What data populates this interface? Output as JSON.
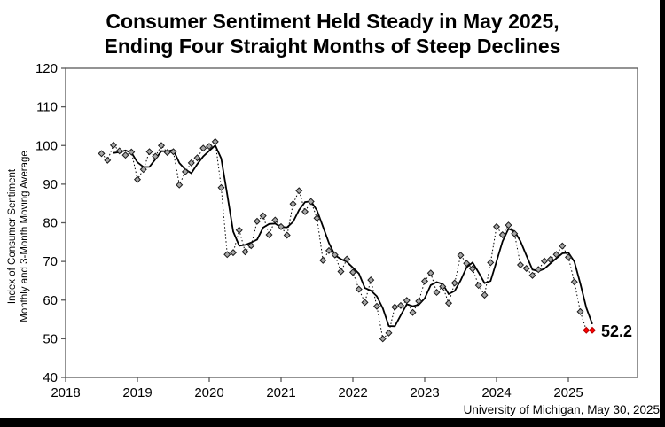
{
  "page": {
    "title_line1": "Consumer Sentiment Held Steady in May 2025,",
    "title_line2": "Ending Four Straight Months of Steep Declines",
    "source_note": "University of Michigan, May 30, 2025"
  },
  "chart_data": {
    "type": "line",
    "title": "Consumer Sentiment Held Steady in May 2025, Ending Four Straight Months of Steep Declines",
    "ylabel_line1": "Index of Consumer Sentiment",
    "ylabel_line2": "Monthly and 3-Month Moving Average",
    "ylim": [
      40,
      120
    ],
    "yticks": [
      40,
      50,
      60,
      70,
      80,
      90,
      100,
      110,
      120
    ],
    "xticks": [
      "2018",
      "2019",
      "2020",
      "2021",
      "2022",
      "2023",
      "2024",
      "2025"
    ],
    "grid": false,
    "legend": "none",
    "x_start": {
      "year": 2018,
      "month": 7
    },
    "x_end": {
      "year": 2025,
      "month": 5
    },
    "series": [
      {
        "name": "Monthly Index",
        "style": "dotted line with diamond markers",
        "values": [
          97.9,
          96.2,
          100.1,
          98.6,
          97.5,
          98.3,
          91.2,
          93.8,
          98.4,
          97.2,
          100.0,
          98.2,
          98.4,
          89.8,
          93.2,
          95.5,
          96.8,
          99.3,
          99.8,
          101.0,
          89.1,
          71.8,
          72.3,
          78.1,
          72.5,
          74.1,
          80.4,
          81.8,
          76.9,
          80.7,
          79.0,
          76.8,
          84.9,
          88.3,
          82.9,
          85.5,
          81.2,
          70.3,
          72.8,
          71.7,
          67.4,
          70.6,
          67.2,
          62.8,
          59.4,
          65.2,
          58.4,
          50.0,
          51.5,
          58.2,
          58.6,
          59.9,
          56.8,
          59.7,
          64.9,
          67.0,
          62.0,
          63.5,
          59.2,
          64.4,
          71.6,
          69.5,
          68.1,
          63.8,
          61.3,
          69.7,
          79.0,
          76.9,
          79.4,
          77.2,
          69.1,
          68.2,
          66.4,
          67.9,
          70.1,
          70.5,
          71.8,
          74.0,
          71.1,
          64.7,
          57.0,
          52.2,
          52.2
        ]
      },
      {
        "name": "3-Month Moving Average",
        "style": "solid line",
        "derived": "3-month moving average of Monthly Index"
      }
    ],
    "highlight": {
      "last_n_points_red": 2,
      "label": "52.2"
    },
    "annotation": {
      "text": "52.2"
    },
    "colors": {
      "marker_fill": "#a6a6a6",
      "marker_stroke": "#1a1a1a",
      "line": "#000000",
      "highlight": "#ff0000",
      "highlight_stroke": "#b30000",
      "frame": "#595959"
    }
  }
}
